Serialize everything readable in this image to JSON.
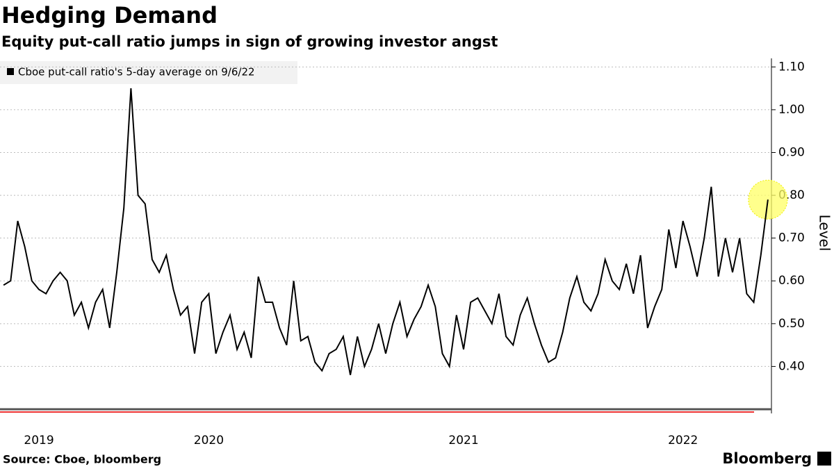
{
  "chart_data": {
    "type": "line",
    "title": "Hedging Demand",
    "subtitle": "Equity put-call ratio jumps in sign of growing investor angst",
    "source": "Source: Cboe, bloomberg",
    "brand": "Bloomberg",
    "y_axis_label": "Level",
    "categories": [
      null,
      null,
      null,
      null,
      null,
      "2019",
      null,
      null,
      null,
      null,
      null,
      null,
      null,
      null,
      null,
      null,
      null,
      null,
      null,
      null,
      null,
      null,
      null,
      null,
      null,
      null,
      null,
      null,
      null,
      "2020",
      null,
      null,
      null,
      null,
      null,
      null,
      null,
      null,
      null,
      null,
      null,
      null,
      null,
      null,
      null,
      null,
      null,
      null,
      null,
      null,
      null,
      null,
      null,
      null,
      null,
      null,
      null,
      null,
      null,
      null,
      null,
      null,
      null,
      null,
      null,
      "2021",
      null,
      null,
      null,
      null,
      null,
      null,
      null,
      null,
      null,
      null,
      null,
      null,
      null,
      null,
      null,
      null,
      null,
      null,
      null,
      null,
      null,
      null,
      null,
      null,
      null,
      null,
      null,
      null,
      null,
      null,
      "2022",
      null,
      null,
      null,
      null,
      null,
      null,
      null,
      null,
      null,
      null,
      null,
      null
    ],
    "series": [
      {
        "name": "Cboe put-call ratio's 5-day average on 9/6/22",
        "color": "#000000",
        "values": [
          0.59,
          0.6,
          0.74,
          0.68,
          0.6,
          0.58,
          0.57,
          0.6,
          0.62,
          0.6,
          0.52,
          0.55,
          0.49,
          0.55,
          0.58,
          0.49,
          0.62,
          0.77,
          1.05,
          0.8,
          0.78,
          0.65,
          0.62,
          0.66,
          0.58,
          0.52,
          0.54,
          0.43,
          0.55,
          0.57,
          0.43,
          0.48,
          0.52,
          0.44,
          0.48,
          0.42,
          0.61,
          0.55,
          0.55,
          0.49,
          0.45,
          0.6,
          0.46,
          0.47,
          0.41,
          0.39,
          0.43,
          0.44,
          0.47,
          0.38,
          0.47,
          0.4,
          0.44,
          0.5,
          0.43,
          0.5,
          0.55,
          0.47,
          0.51,
          0.54,
          0.59,
          0.54,
          0.43,
          0.4,
          0.52,
          0.44,
          0.55,
          0.56,
          0.53,
          0.5,
          0.57,
          0.47,
          0.45,
          0.52,
          0.56,
          0.5,
          0.45,
          0.41,
          0.42,
          0.48,
          0.56,
          0.61,
          0.55,
          0.53,
          0.57,
          0.65,
          0.6,
          0.58,
          0.64,
          0.57,
          0.66,
          0.49,
          0.54,
          0.58,
          0.72,
          0.63,
          0.74,
          0.68,
          0.61,
          0.7,
          0.82,
          0.61,
          0.7,
          0.62,
          0.7,
          0.57,
          0.55,
          0.66,
          0.79
        ]
      }
    ],
    "ylim": [
      0.3,
      1.12
    ],
    "yticks": [
      {
        "value": 0.4,
        "label": "0.40"
      },
      {
        "value": 0.5,
        "label": "0.50"
      },
      {
        "value": 0.6,
        "label": "0.60"
      },
      {
        "value": 0.7,
        "label": "0.70"
      },
      {
        "value": 0.8,
        "label": "0.80"
      },
      {
        "value": 0.9,
        "label": "0.90"
      },
      {
        "value": 1.0,
        "label": "1.00"
      },
      {
        "value": 1.1,
        "label": "1.10"
      }
    ],
    "grid": true
  }
}
